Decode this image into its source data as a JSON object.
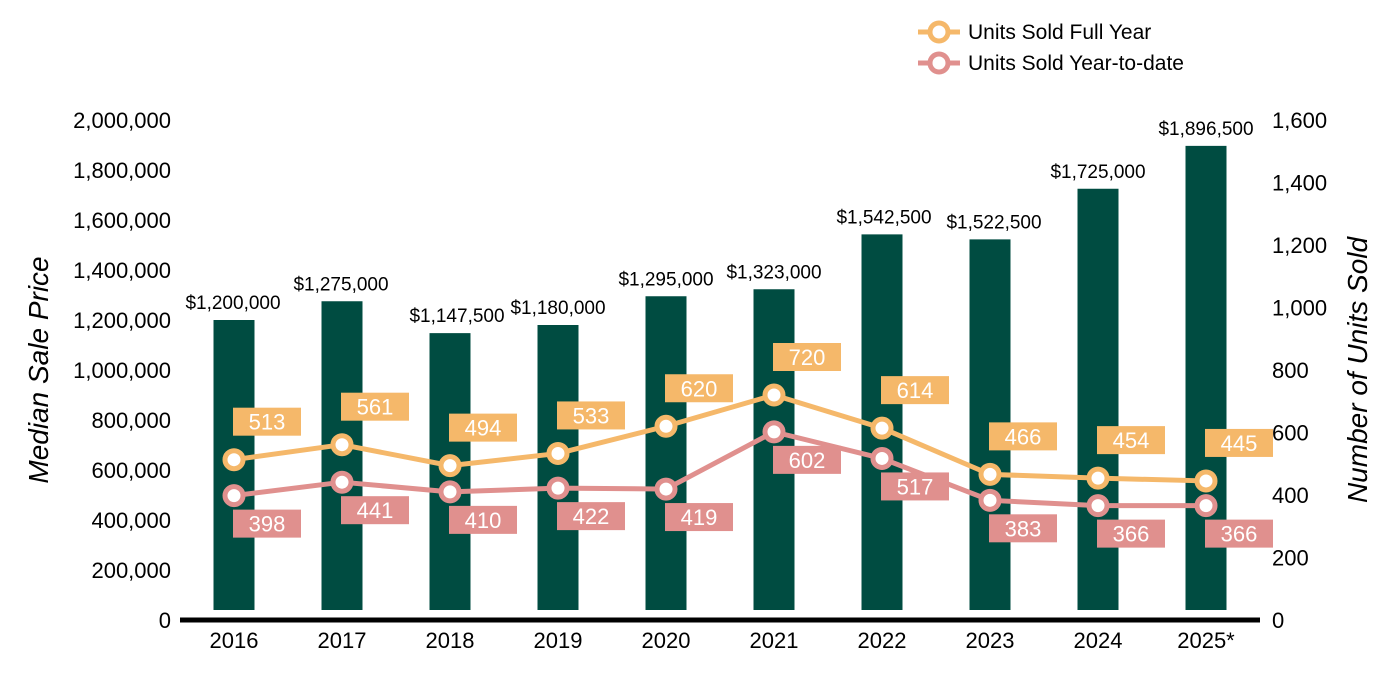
{
  "chart_data": {
    "type": "bar",
    "categories": [
      "2016",
      "2017",
      "2018",
      "2019",
      "2020",
      "2021",
      "2022",
      "2023",
      "2024",
      "2025*"
    ],
    "y_left_label": "Median Sale Price",
    "y_right_label": "Number of Units Sold",
    "y_left_range": [
      0,
      2000000
    ],
    "y_right_range": [
      0,
      1600
    ],
    "y_left_ticks": [
      "0",
      "200,000",
      "400,000",
      "600,000",
      "800,000",
      "1,000,000",
      "1,200,000",
      "1,400,000",
      "1,600,000",
      "1,800,000",
      "2,000,000"
    ],
    "y_left_tick_values": [
      0,
      200000,
      400000,
      600000,
      800000,
      1000000,
      1200000,
      1400000,
      1600000,
      1800000,
      2000000
    ],
    "y_right_ticks": [
      "0",
      "200",
      "400",
      "600",
      "800",
      "1,000",
      "1,200",
      "1,400",
      "1,600"
    ],
    "y_right_tick_values": [
      0,
      200,
      400,
      600,
      800,
      1000,
      1200,
      1400,
      1600
    ],
    "grid": false,
    "legend_position": "top-right",
    "bars": {
      "axis": "left",
      "color": "#004c41",
      "values": [
        1200000,
        1275000,
        1147500,
        1180000,
        1295000,
        1323000,
        1542500,
        1522500,
        1725000,
        1896500
      ],
      "labels": [
        "$1,200,000",
        "$1,275,000",
        "$1,147,500",
        "$1,180,000",
        "$1,295,000",
        "$1,323,000",
        "$1,542,500",
        "$1,522,500",
        "$1,725,000",
        "$1,896,500"
      ]
    },
    "series": [
      {
        "name": "Units Sold Full Year",
        "type": "line",
        "axis": "right",
        "color": "#f5b86a",
        "values": [
          513,
          561,
          494,
          533,
          620,
          720,
          614,
          466,
          454,
          445
        ],
        "labels": [
          "513",
          "561",
          "494",
          "533",
          "620",
          "720",
          "614",
          "466",
          "454",
          "445"
        ],
        "label_position": "above"
      },
      {
        "name": "Units Sold Year-to-date",
        "type": "line",
        "axis": "right",
        "color": "#e0908e",
        "values": [
          398,
          441,
          410,
          422,
          419,
          602,
          517,
          383,
          366,
          366
        ],
        "labels": [
          "398",
          "441",
          "410",
          "422",
          "419",
          "602",
          "517",
          "383",
          "366",
          "366"
        ],
        "label_position": "below"
      }
    ]
  }
}
